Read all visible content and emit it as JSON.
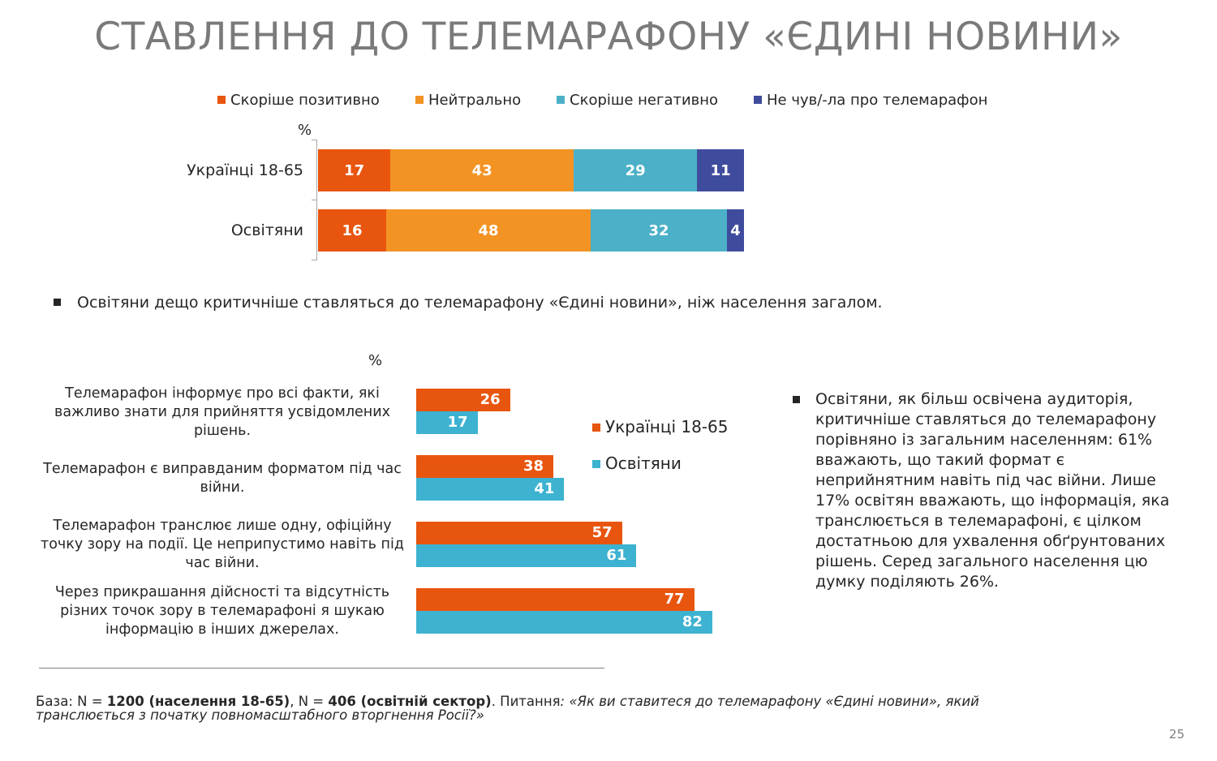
{
  "title": "СТАВЛЕННЯ ДО ТЕЛЕМАРАФОНУ «ЄДИНІ НОВИНИ»",
  "colors": {
    "positive": "#e8550e",
    "neutral": "#f39324",
    "negative": "#4bb0c8",
    "not_heard": "#3f4c9e",
    "edu": "#3db2d1"
  },
  "chart_data": [
    {
      "type": "bar",
      "orientation": "horizontal-stacked",
      "unit_label": "%",
      "categories": [
        "Українці 18-65",
        "Освітяни"
      ],
      "series": [
        {
          "name": "Скоріше позитивно",
          "values": [
            17,
            16
          ]
        },
        {
          "name": "Нейтрально",
          "values": [
            43,
            48
          ]
        },
        {
          "name": "Скоріше негативно",
          "values": [
            29,
            32
          ]
        },
        {
          "name": "Не чув/-ла про телемарафон",
          "values": [
            11,
            4
          ]
        }
      ],
      "legend_position": "top"
    },
    {
      "type": "bar",
      "orientation": "horizontal-grouped",
      "unit_label": "%",
      "categories": [
        "Телемарафон інформує про всі факти, які важливо знати для прийняття усвідомлених рішень.",
        "Телемарафон є виправданим форматом під час війни.",
        "Телемарафон транслює лише одну, офіційну точку зору на події. Це неприпустимо навіть під час війни.",
        "Через прикрашання дійсності та відсутність різних точок зору в телемарафоні я шукаю інформацію в інших джерелах."
      ],
      "series": [
        {
          "name": "Українці 18-65",
          "values": [
            26,
            38,
            57,
            77
          ]
        },
        {
          "name": "Освітяни",
          "values": [
            17,
            41,
            61,
            82
          ]
        }
      ],
      "legend_position": "right"
    }
  ],
  "bullet1": "Освітяни дещо критичніше ставляться до телемарафону «Єдині новини», ніж населення загалом.",
  "note": "Освітяни, як більш освічена аудиторія, критичніше ставляться до телемарафону порівняно із загальним населенням: 61% вважають, що такий формат є неприйнятним навіть під час війни. Лише 17% освітян вважають, що інформація, яка транслюється в телемарафоні, є цілком достатньою для ухвалення обґрунтованих рішень. Серед загального населення цю думку поділяють 26%.",
  "footer": {
    "base_prefix": "База: N = ",
    "base_n1": "1200 (населення 18-65)",
    "base_sep": ", N = ",
    "base_n2": "406 (освітній сектор)",
    "question_prefix": ". Питання",
    "question": ": «Як ви ставитеся до телемарафону «Єдині новини», який транслюється з початку повномасштабного вторгнення Росії?»"
  },
  "page_number": "25"
}
